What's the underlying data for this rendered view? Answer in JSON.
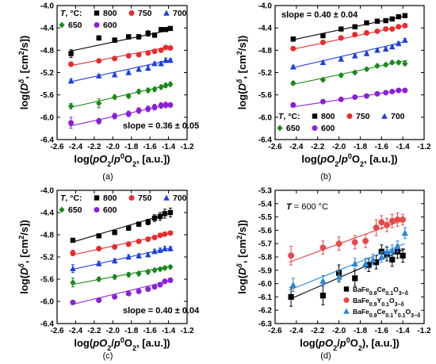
{
  "chart_data": [
    {
      "type": "scatter",
      "panel_label": "(a)",
      "xlabel": "log(pO2/p0O2, [a.u.])",
      "ylabel": "log(Dδ, [cm2/s])",
      "xlim": [
        -2.6,
        -1.2
      ],
      "ylim": [
        -6.4,
        -4.0
      ],
      "xticks": [
        "-2.6",
        "-2.4",
        "-2.2",
        "-2.0",
        "-1.8",
        "-1.6",
        "-1.4",
        "-1.2"
      ],
      "yticks": [
        "-4.0",
        "-4.4",
        "-4.8",
        "-5.2",
        "-5.6",
        "-6.0",
        "-6.4"
      ],
      "legend_title": "T, °C:",
      "annotation": "slope = 0.36 ± 0.05",
      "series": [
        {
          "name": "800",
          "color": "#000000",
          "marker": "square",
          "x": [
            -2.45,
            -2.15,
            -1.98,
            -1.83,
            -1.72,
            -1.62,
            -1.55,
            -1.48,
            -1.43,
            -1.38
          ],
          "y": [
            -4.86,
            -4.58,
            -4.62,
            -4.56,
            -4.56,
            -4.5,
            -4.53,
            -4.43,
            -4.43,
            -4.41
          ],
          "err": [
            0.07,
            0.04,
            0.04,
            0.04,
            0.04,
            0.05,
            0.04,
            0.03,
            0.03,
            0.03
          ],
          "fit": [
            [
              -2.47,
              -4.82
            ],
            [
              -1.36,
              -4.43
            ]
          ]
        },
        {
          "name": "750",
          "color": "#e82c2c",
          "marker": "circle",
          "x": [
            -2.45,
            -2.15,
            -1.98,
            -1.83,
            -1.72,
            -1.62,
            -1.55,
            -1.48,
            -1.43,
            -1.38
          ],
          "y": [
            -5.05,
            -4.99,
            -4.95,
            -4.9,
            -4.88,
            -4.85,
            -4.82,
            -4.8,
            -4.75,
            -4.76
          ],
          "err": [
            0.04,
            0.03,
            0.03,
            0.03,
            0.03,
            0.03,
            0.03,
            0.03,
            0.03,
            0.03
          ],
          "fit": [
            [
              -2.47,
              -5.08
            ],
            [
              -1.36,
              -4.73
            ]
          ]
        },
        {
          "name": "700",
          "color": "#1b3fe0",
          "marker": "triangle",
          "x": [
            -2.45,
            -2.15,
            -1.98,
            -1.83,
            -1.72,
            -1.62,
            -1.55,
            -1.48,
            -1.43,
            -1.38
          ],
          "y": [
            -5.35,
            -5.26,
            -5.24,
            -5.2,
            -5.14,
            -5.12,
            -5.04,
            -5.04,
            -4.98,
            -4.98
          ],
          "err": [
            0.04,
            0.03,
            0.03,
            0.03,
            0.04,
            0.04,
            0.03,
            0.04,
            0.04,
            0.03
          ],
          "fit": [
            [
              -2.47,
              -5.37
            ],
            [
              -1.36,
              -4.97
            ]
          ]
        },
        {
          "name": "650",
          "color": "#1a8a1a",
          "marker": "diamond",
          "x": [
            -2.45,
            -2.15,
            -1.98,
            -1.83,
            -1.72,
            -1.62,
            -1.55,
            -1.48,
            -1.43,
            -1.38
          ],
          "y": [
            -5.8,
            -5.75,
            -5.64,
            -5.62,
            -5.54,
            -5.52,
            -5.5,
            -5.46,
            -5.43,
            -5.41
          ],
          "err": [
            0.05,
            0.08,
            0.04,
            0.04,
            0.04,
            0.04,
            0.04,
            0.04,
            0.04,
            0.04
          ],
          "fit": [
            [
              -2.47,
              -5.83
            ],
            [
              -1.36,
              -5.41
            ]
          ]
        },
        {
          "name": "600",
          "color": "#8b1fd9",
          "marker": "circle",
          "x": [
            -2.45,
            -2.15,
            -1.98,
            -1.83,
            -1.72,
            -1.62,
            -1.55,
            -1.48,
            -1.43,
            -1.38
          ],
          "y": [
            -6.1,
            -6.07,
            -5.98,
            -5.94,
            -5.88,
            -5.85,
            -5.82,
            -5.79,
            -5.78,
            -5.78
          ],
          "err": [
            0.1,
            0.05,
            0.05,
            0.05,
            0.05,
            0.05,
            0.05,
            0.05,
            0.05,
            0.04
          ],
          "fit": [
            [
              -2.47,
              -6.16
            ],
            [
              -1.36,
              -5.76
            ]
          ]
        }
      ]
    },
    {
      "type": "scatter",
      "panel_label": "(b)",
      "xlabel": "log(pO2/p0O2, [a.u.])",
      "ylabel": "log(Dδ, [cm2/s])",
      "xlim": [
        -2.6,
        -1.2
      ],
      "ylim": [
        -6.4,
        -4.0
      ],
      "xticks": [
        "-2.6",
        "-2.4",
        "-2.2",
        "-2.0",
        "-1.8",
        "-1.6",
        "-1.4",
        "-1.2"
      ],
      "yticks": [
        "-4.0",
        "-4.4",
        "-4.8",
        "-5.2",
        "-5.6",
        "-6.0",
        "-6.4"
      ],
      "legend_title": "T, °C:",
      "annotation": "slope = 0.40 ± 0.04",
      "series": [
        {
          "name": "800",
          "color": "#000000",
          "marker": "square",
          "x": [
            -2.43,
            -2.15,
            -1.98,
            -1.85,
            -1.74,
            -1.64,
            -1.56,
            -1.5,
            -1.44,
            -1.38
          ],
          "y": [
            -4.6,
            -4.54,
            -4.42,
            -4.38,
            -4.31,
            -4.28,
            -4.27,
            -4.24,
            -4.2,
            -4.18
          ],
          "err": [
            0.04,
            0.03,
            0.03,
            0.03,
            0.03,
            0.03,
            0.03,
            0.03,
            0.03,
            0.03
          ],
          "fit": [
            [
              -2.45,
              -4.62
            ],
            [
              -1.36,
              -4.18
            ]
          ]
        },
        {
          "name": "750",
          "color": "#e82c2c",
          "marker": "circle",
          "x": [
            -2.43,
            -2.15,
            -1.98,
            -1.85,
            -1.74,
            -1.64,
            -1.56,
            -1.5,
            -1.44,
            -1.38
          ],
          "y": [
            -4.77,
            -4.66,
            -4.58,
            -4.52,
            -4.49,
            -4.46,
            -4.42,
            -4.42,
            -4.38,
            -4.36
          ],
          "err": [
            0.03,
            0.03,
            0.03,
            0.03,
            0.03,
            0.03,
            0.03,
            0.03,
            0.03,
            0.03
          ],
          "fit": [
            [
              -2.45,
              -4.79
            ],
            [
              -1.36,
              -4.35
            ]
          ]
        },
        {
          "name": "700",
          "color": "#1b3fe0",
          "marker": "triangle",
          "x": [
            -2.43,
            -2.15,
            -1.98,
            -1.85,
            -1.74,
            -1.64,
            -1.56,
            -1.5,
            -1.44,
            -1.38
          ],
          "y": [
            -5.1,
            -5.02,
            -4.96,
            -4.9,
            -4.86,
            -4.8,
            -4.78,
            -4.74,
            -4.68,
            -4.62
          ],
          "err": [
            0.03,
            0.03,
            0.03,
            0.03,
            0.03,
            0.03,
            0.03,
            0.03,
            0.03,
            0.03
          ],
          "fit": [
            [
              -2.45,
              -5.12
            ],
            [
              -1.36,
              -4.64
            ]
          ]
        },
        {
          "name": "650",
          "color": "#1a8a1a",
          "marker": "diamond",
          "x": [
            -2.43,
            -2.15,
            -1.98,
            -1.85,
            -1.74,
            -1.64,
            -1.56,
            -1.5,
            -1.44,
            -1.38
          ],
          "y": [
            -5.39,
            -5.33,
            -5.25,
            -5.2,
            -5.14,
            -5.08,
            -5.06,
            -5.02,
            -5.02,
            -5.04
          ],
          "err": [
            0.03,
            0.03,
            0.03,
            0.03,
            0.03,
            0.03,
            0.03,
            0.03,
            0.03,
            0.03
          ],
          "fit": [
            [
              -2.45,
              -5.42
            ],
            [
              -1.36,
              -4.98
            ]
          ]
        },
        {
          "name": "600",
          "color": "#8b1fd9",
          "marker": "circle",
          "x": [
            -2.43,
            -2.15,
            -1.98,
            -1.85,
            -1.74,
            -1.64,
            -1.56,
            -1.5,
            -1.44,
            -1.38
          ],
          "y": [
            -5.78,
            -5.72,
            -5.68,
            -5.64,
            -5.62,
            -5.58,
            -5.56,
            -5.54,
            -5.52,
            -5.52
          ],
          "err": [
            0.04,
            0.03,
            0.03,
            0.03,
            0.03,
            0.03,
            0.03,
            0.03,
            0.03,
            0.03
          ],
          "fit": [
            [
              -2.45,
              -5.82
            ],
            [
              -1.36,
              -5.5
            ]
          ]
        }
      ]
    },
    {
      "type": "scatter",
      "panel_label": "(c)",
      "xlabel": "log(pO2/p0O2, [a.u.])",
      "ylabel": "log(Dδ, [cm2/s])",
      "xlim": [
        -2.6,
        -1.2
      ],
      "ylim": [
        -6.4,
        -4.0
      ],
      "xticks": [
        "-2.6",
        "-2.4",
        "-2.2",
        "-2.0",
        "-1.8",
        "-1.6",
        "-1.4",
        "-1.2"
      ],
      "yticks": [
        "-4.0",
        "-4.4",
        "-4.8",
        "-5.2",
        "-5.6",
        "-6.0",
        "-6.4"
      ],
      "legend_title": "T, °C:",
      "annotation": "slope = 0.40 ± 0.04",
      "series": [
        {
          "name": "800",
          "color": "#000000",
          "marker": "square",
          "x": [
            -2.43,
            -2.15,
            -1.98,
            -1.83,
            -1.72,
            -1.62,
            -1.55,
            -1.49,
            -1.44,
            -1.38
          ],
          "y": [
            -4.9,
            -4.82,
            -4.76,
            -4.68,
            -4.61,
            -4.57,
            -4.5,
            -4.47,
            -4.42,
            -4.4
          ],
          "err": [
            0.03,
            0.03,
            0.03,
            0.04,
            0.04,
            0.05,
            0.06,
            0.07,
            0.08,
            0.08
          ],
          "fit": [
            [
              -2.45,
              -4.94
            ],
            [
              -1.36,
              -4.4
            ]
          ]
        },
        {
          "name": "750",
          "color": "#e82c2c",
          "marker": "circle",
          "x": [
            -2.43,
            -2.15,
            -1.98,
            -1.83,
            -1.72,
            -1.62,
            -1.55,
            -1.49,
            -1.44,
            -1.38
          ],
          "y": [
            -5.13,
            -5.05,
            -5.02,
            -4.97,
            -4.92,
            -4.88,
            -4.85,
            -4.81,
            -4.79,
            -4.77
          ],
          "err": [
            0.05,
            0.04,
            0.04,
            0.04,
            0.03,
            0.03,
            0.03,
            0.03,
            0.03,
            0.03
          ],
          "fit": [
            [
              -2.45,
              -5.17
            ],
            [
              -1.36,
              -4.77
            ]
          ]
        },
        {
          "name": "700",
          "color": "#1b3fe0",
          "marker": "triangle",
          "x": [
            -2.43,
            -2.15,
            -1.98,
            -1.83,
            -1.72,
            -1.62,
            -1.55,
            -1.49,
            -1.44,
            -1.38
          ],
          "y": [
            -5.41,
            -5.32,
            -5.27,
            -5.2,
            -5.18,
            -5.16,
            -5.1,
            -5.08,
            -5.05,
            -5.05
          ],
          "err": [
            0.07,
            0.04,
            0.04,
            0.04,
            0.04,
            0.04,
            0.04,
            0.04,
            0.04,
            0.04
          ],
          "fit": [
            [
              -2.45,
              -5.43
            ],
            [
              -1.36,
              -5.03
            ]
          ]
        },
        {
          "name": "650",
          "color": "#1a8a1a",
          "marker": "diamond",
          "x": [
            -2.43,
            -2.15,
            -1.98,
            -1.83,
            -1.72,
            -1.62,
            -1.55,
            -1.49,
            -1.44,
            -1.38
          ],
          "y": [
            -5.66,
            -5.6,
            -5.56,
            -5.52,
            -5.5,
            -5.47,
            -5.44,
            -5.42,
            -5.4,
            -5.38
          ],
          "err": [
            0.08,
            0.04,
            0.04,
            0.04,
            0.04,
            0.04,
            0.03,
            0.03,
            0.03,
            0.03
          ],
          "fit": [
            [
              -2.45,
              -5.7
            ],
            [
              -1.36,
              -5.36
            ]
          ]
        },
        {
          "name": "600",
          "color": "#8b1fd9",
          "marker": "circle",
          "x": [
            -2.43,
            -2.15,
            -1.98,
            -1.83,
            -1.72,
            -1.62,
            -1.55,
            -1.49,
            -1.44,
            -1.38
          ],
          "y": [
            -6.02,
            -5.98,
            -5.92,
            -5.86,
            -5.82,
            -5.78,
            -5.74,
            -5.7,
            -5.64,
            -5.62
          ],
          "err": [
            0.03,
            0.03,
            0.03,
            0.03,
            0.03,
            0.03,
            0.03,
            0.04,
            0.04,
            0.04
          ],
          "fit": [
            [
              -2.45,
              -6.06
            ],
            [
              -1.36,
              -5.62
            ]
          ]
        }
      ]
    },
    {
      "type": "scatter",
      "panel_label": "(d)",
      "xlabel": "log(pO2/p0O2), [a.u.])",
      "ylabel": "log(Dδ, [cm2/s])",
      "xlim": [
        -2.6,
        -1.2
      ],
      "ylim": [
        -6.3,
        -5.3
      ],
      "xticks": [
        "-2.6",
        "-2.4",
        "-2.2",
        "-2.0",
        "-1.8",
        "-1.6",
        "-1.4",
        "-1.2"
      ],
      "yticks": [
        "-5.3",
        "-5.4",
        "-5.5",
        "-5.6",
        "-5.7",
        "-5.8",
        "-5.9",
        "-6.0",
        "-6.1",
        "-6.2",
        "-6.3"
      ],
      "annotation": "T = 600 °C",
      "series": [
        {
          "name": "BaFe0.9Ce0.1O3−δ",
          "color": "#000000",
          "marker": "square",
          "x": [
            -2.45,
            -2.15,
            -2.0,
            -1.85,
            -1.72,
            -1.65,
            -1.6,
            -1.55,
            -1.5,
            -1.45,
            -1.4
          ],
          "y": [
            -6.1,
            -6.09,
            -5.92,
            -5.96,
            -5.86,
            -5.84,
            -5.76,
            -5.78,
            -5.82,
            -5.76,
            -5.79
          ],
          "err": [
            0.07,
            0.07,
            0.06,
            0.06,
            0.05,
            0.05,
            0.05,
            0.05,
            0.05,
            0.05,
            0.05
          ],
          "fit": [
            [
              -2.47,
              -6.12
            ],
            [
              -1.38,
              -5.74
            ]
          ]
        },
        {
          "name": "BaFe0.9Y0.1O3−δ",
          "color": "#e84848",
          "marker": "circle",
          "x": [
            -2.45,
            -2.15,
            -2.0,
            -1.85,
            -1.75,
            -1.65,
            -1.6,
            -1.55,
            -1.5,
            -1.45,
            -1.4
          ],
          "y": [
            -5.79,
            -5.73,
            -5.7,
            -5.69,
            -5.68,
            -5.58,
            -5.54,
            -5.56,
            -5.53,
            -5.52,
            -5.52
          ],
          "err": [
            0.07,
            0.05,
            0.05,
            0.05,
            0.05,
            0.06,
            0.05,
            0.05,
            0.05,
            0.05,
            0.04
          ],
          "fit": [
            [
              -2.47,
              -5.84
            ],
            [
              -1.38,
              -5.52
            ]
          ]
        },
        {
          "name": "BaFe0.9Ce0.1Y0.1O3−δ",
          "color": "#2e86de",
          "marker": "triangle",
          "x": [
            -2.43,
            -2.15,
            -2.0,
            -1.85,
            -1.75,
            -1.68,
            -1.6,
            -1.55,
            -1.5,
            -1.45,
            -1.38
          ],
          "y": [
            -6.01,
            -5.98,
            -5.95,
            -5.85,
            -5.85,
            -5.82,
            -5.8,
            -5.76,
            -5.75,
            -5.72,
            -5.62
          ],
          "err": [
            0.05,
            0.04,
            0.04,
            0.04,
            0.04,
            0.04,
            0.04,
            0.04,
            0.04,
            0.04,
            0.04
          ],
          "fit": [
            [
              -2.47,
              -6.05
            ],
            [
              -1.38,
              -5.7
            ]
          ]
        }
      ]
    }
  ]
}
